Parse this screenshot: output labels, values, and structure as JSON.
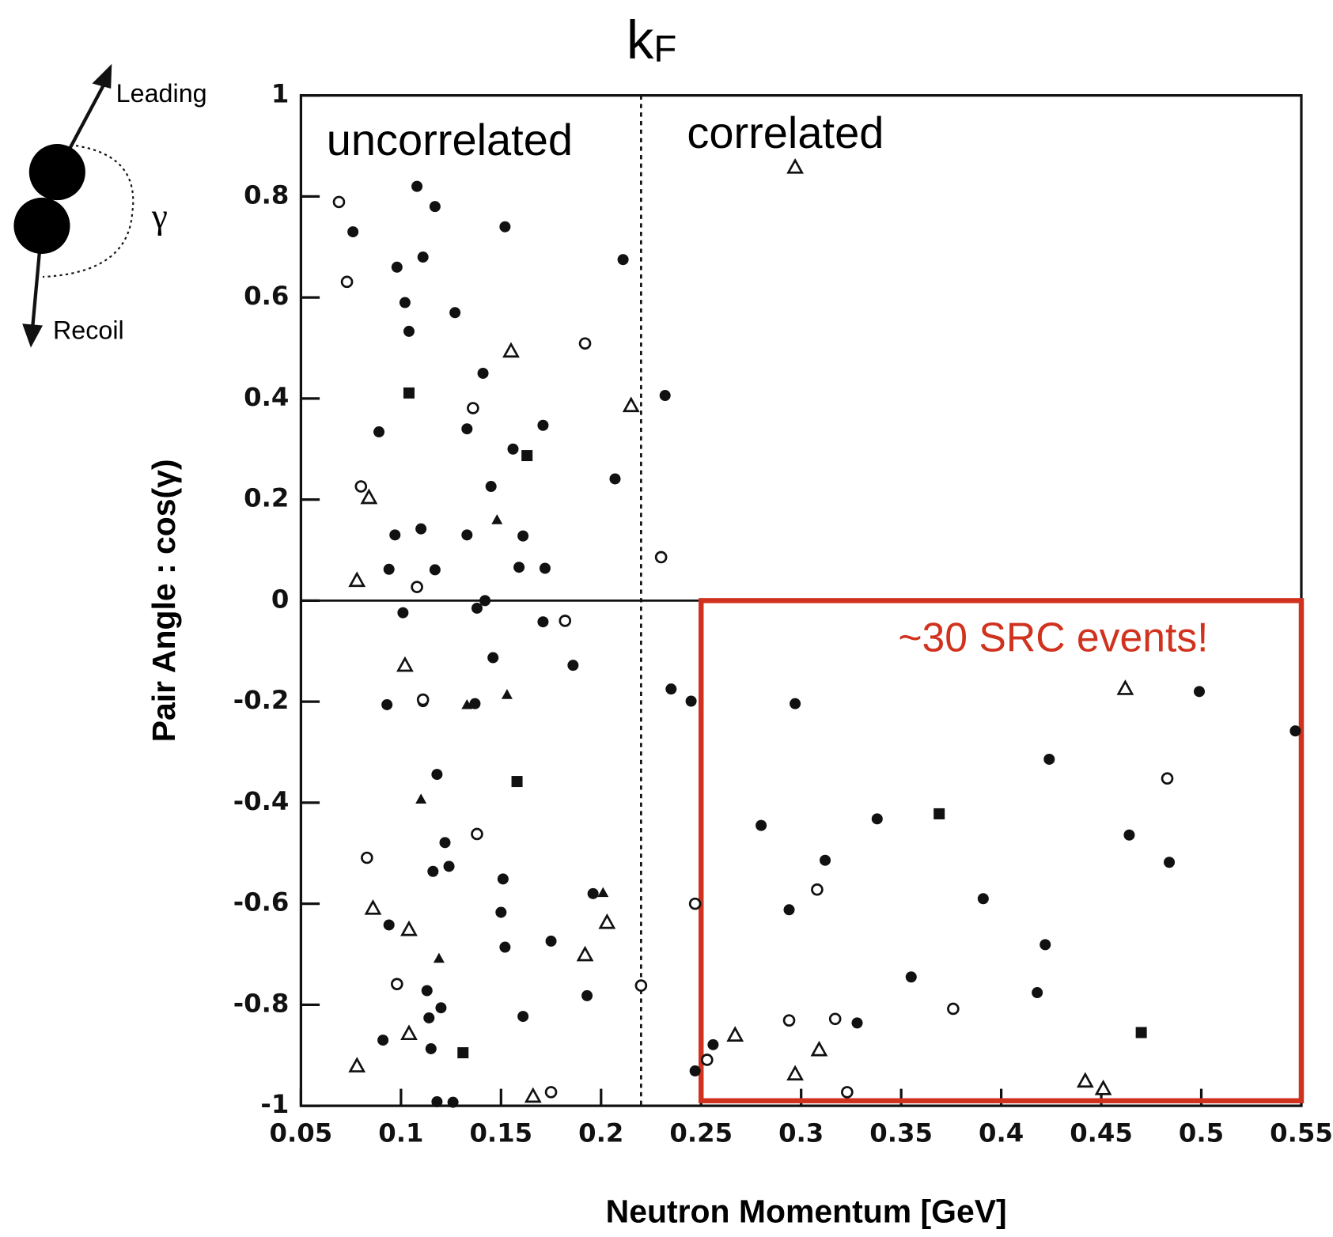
{
  "chart_data": {
    "type": "scatter",
    "title": {
      "main": "k",
      "sub": "F"
    },
    "x_label": "Neutron Momentum [GeV]",
    "y_label": "Pair Angle : cos(γ)",
    "annotations": {
      "left": "uncorrelated",
      "right": "correlated",
      "box": "~30 SRC events!"
    },
    "diagram": {
      "leading": "Leading",
      "recoil": "Recoil",
      "angle": "γ"
    },
    "kf_line": 0.22,
    "src_box": {
      "xlim": [
        0.25,
        0.55
      ],
      "ylim": [
        -0.99,
        0
      ],
      "color": "#d0321e"
    },
    "zero_line": 0,
    "xlim": [
      0.05,
      0.55
    ],
    "ylim": [
      -1,
      1
    ],
    "xticks": [
      0.05,
      0.1,
      0.15,
      0.2,
      0.25,
      0.3,
      0.35,
      0.4,
      0.45,
      0.5,
      0.55
    ],
    "yticks": [
      -1,
      -0.8,
      -0.6,
      -0.4,
      -0.2,
      0,
      0.2,
      0.4,
      0.6,
      0.8,
      1
    ],
    "series": [
      {
        "marker": "circle",
        "filled": true,
        "color": "#111111",
        "x": [
          0.108,
          0.117,
          0.152,
          0.076,
          0.211,
          0.111,
          0.098,
          0.102,
          0.127,
          0.104,
          0.141,
          0.232,
          0.089,
          0.171,
          0.133,
          0.156,
          0.207,
          0.145,
          0.097,
          0.11,
          0.133,
          0.161,
          0.094,
          0.117,
          0.159,
          0.172,
          0.142,
          0.101,
          0.138,
          0.171,
          0.146,
          0.186,
          0.235,
          0.245,
          0.093,
          0.111,
          0.137,
          0.297,
          0.499,
          0.547,
          0.424,
          0.118,
          0.28,
          0.338,
          0.122,
          0.464,
          0.312,
          0.124,
          0.116,
          0.484,
          0.151,
          0.196,
          0.391,
          0.294,
          0.15,
          0.094,
          0.152,
          0.175,
          0.422,
          0.355,
          0.113,
          0.193,
          0.418,
          0.12,
          0.114,
          0.161,
          0.328,
          0.091,
          0.256,
          0.115,
          0.247,
          0.118,
          0.126
        ],
        "values": [
          0.82,
          0.78,
          0.74,
          0.73,
          0.675,
          0.68,
          0.66,
          0.59,
          0.57,
          0.533,
          0.45,
          0.406,
          0.334,
          0.347,
          0.34,
          0.3,
          0.241,
          0.226,
          0.13,
          0.142,
          0.13,
          0.128,
          0.062,
          0.061,
          0.066,
          0.064,
          0.0,
          -0.024,
          -0.015,
          -0.042,
          -0.113,
          -0.128,
          -0.175,
          -0.199,
          -0.206,
          -0.2,
          -0.204,
          -0.204,
          -0.18,
          -0.258,
          -0.314,
          -0.344,
          -0.445,
          -0.432,
          -0.479,
          -0.464,
          -0.514,
          -0.526,
          -0.536,
          -0.518,
          -0.551,
          -0.58,
          -0.59,
          -0.612,
          -0.617,
          -0.642,
          -0.686,
          -0.674,
          -0.681,
          -0.745,
          -0.772,
          -0.782,
          -0.776,
          -0.806,
          -0.826,
          -0.823,
          -0.836,
          -0.87,
          -0.879,
          -0.887,
          -0.931,
          -0.992,
          -0.993
        ]
      },
      {
        "marker": "circle",
        "filled": false,
        "color": "#111111",
        "x": [
          0.069,
          0.073,
          0.192,
          0.136,
          0.08,
          0.23,
          0.108,
          0.182,
          0.111,
          0.138,
          0.083,
          0.247,
          0.308,
          0.483,
          0.098,
          0.22,
          0.376,
          0.294,
          0.317,
          0.253,
          0.175,
          0.323
        ],
        "values": [
          0.789,
          0.631,
          0.509,
          0.381,
          0.226,
          0.086,
          0.027,
          -0.04,
          -0.196,
          -0.462,
          -0.509,
          -0.6,
          -0.572,
          -0.352,
          -0.759,
          -0.762,
          -0.808,
          -0.831,
          -0.828,
          -0.909,
          -0.973,
          -0.973
        ]
      },
      {
        "marker": "triangle",
        "filled": false,
        "color": "#111111",
        "x": [
          0.297,
          0.155,
          0.215,
          0.084,
          0.078,
          0.102,
          0.462,
          0.086,
          0.104,
          0.203,
          0.192,
          0.104,
          0.267,
          0.309,
          0.078,
          0.297,
          0.442,
          0.451,
          0.166
        ],
        "values": [
          0.858,
          0.494,
          0.386,
          0.204,
          0.04,
          -0.128,
          -0.174,
          -0.609,
          -0.651,
          -0.637,
          -0.701,
          -0.857,
          -0.86,
          -0.889,
          -0.921,
          -0.937,
          -0.951,
          -0.966,
          -0.981
        ]
      },
      {
        "marker": "triangle",
        "filled": true,
        "color": "#111111",
        "x": [
          0.148,
          0.11,
          0.119,
          0.201,
          0.153,
          0.133
        ],
        "values": [
          0.16,
          -0.393,
          -0.708,
          -0.578,
          -0.186,
          -0.206
        ]
      },
      {
        "marker": "square",
        "filled": true,
        "color": "#111111",
        "x": [
          0.104,
          0.163,
          0.158,
          0.369,
          0.47,
          0.131
        ],
        "values": [
          0.411,
          0.287,
          -0.358,
          -0.422,
          -0.855,
          -0.895
        ]
      }
    ]
  }
}
